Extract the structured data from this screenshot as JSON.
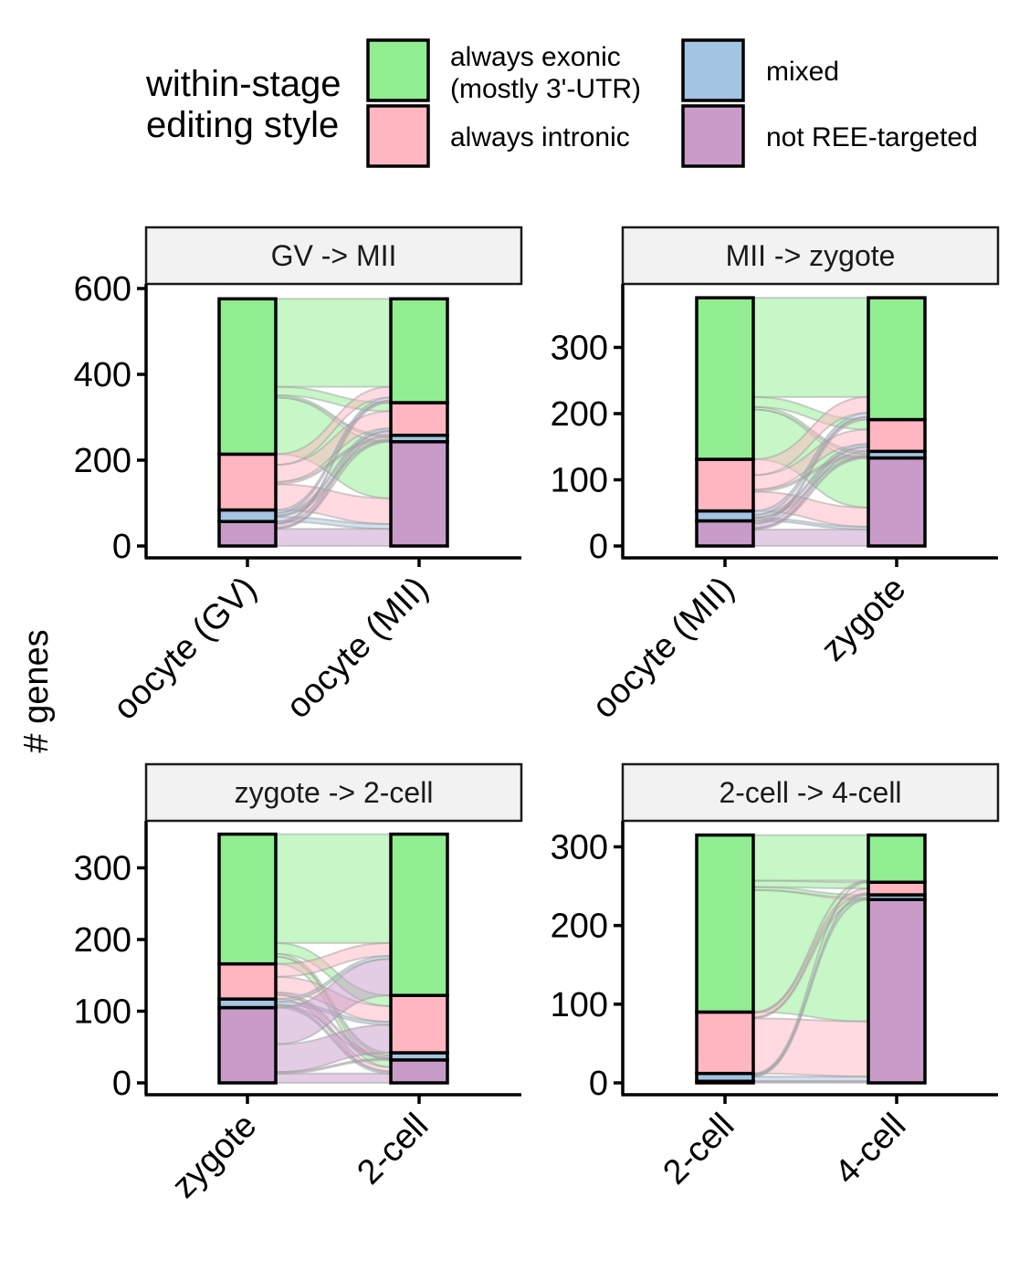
{
  "legend": {
    "title_line1": "within-stage",
    "title_line2": "editing style",
    "items": [
      {
        "key": "exonic",
        "label_line1": "always exonic",
        "label_line2": "(mostly 3'-UTR)",
        "color": "#90EE90"
      },
      {
        "key": "mixed",
        "label_line1": "mixed",
        "label_line2": "",
        "color": "#A3C4E2"
      },
      {
        "key": "intronic",
        "label_line1": "always intronic",
        "label_line2": "",
        "color": "#FFB6C1"
      },
      {
        "key": "notree",
        "label_line1": "not REE-targeted",
        "label_line2": "",
        "color": "#C89BC9"
      }
    ]
  },
  "ylabel": "# genes",
  "chart_data": [
    {
      "type": "alluvial",
      "title": "GV -> MII",
      "categories": [
        "oocyte (GV)",
        "oocyte (MII)"
      ],
      "ylim": [
        0,
        600
      ],
      "yticks": [
        0,
        200,
        400,
        600
      ],
      "stack_order": [
        "notree",
        "mixed",
        "intronic",
        "exonic"
      ],
      "stacks": [
        {
          "notree": 57,
          "mixed": 27,
          "intronic": 130,
          "exonic": 362
        },
        {
          "notree": 243,
          "mixed": 15,
          "intronic": 76,
          "exonic": 242
        }
      ],
      "flows": [
        {
          "from": "exonic",
          "to": "exonic",
          "value": 205
        },
        {
          "from": "exonic",
          "to": "intronic",
          "value": 20
        },
        {
          "from": "exonic",
          "to": "mixed",
          "value": 5
        },
        {
          "from": "exonic",
          "to": "notree",
          "value": 132
        },
        {
          "from": "intronic",
          "to": "exonic",
          "value": 25
        },
        {
          "from": "intronic",
          "to": "intronic",
          "value": 40
        },
        {
          "from": "intronic",
          "to": "mixed",
          "value": 5
        },
        {
          "from": "intronic",
          "to": "notree",
          "value": 60
        },
        {
          "from": "mixed",
          "to": "exonic",
          "value": 7
        },
        {
          "from": "mixed",
          "to": "intronic",
          "value": 6
        },
        {
          "from": "mixed",
          "to": "mixed",
          "value": 3
        },
        {
          "from": "mixed",
          "to": "notree",
          "value": 11
        },
        {
          "from": "notree",
          "to": "exonic",
          "value": 5
        },
        {
          "from": "notree",
          "to": "intronic",
          "value": 10
        },
        {
          "from": "notree",
          "to": "mixed",
          "value": 2
        },
        {
          "from": "notree",
          "to": "notree",
          "value": 40
        }
      ]
    },
    {
      "type": "alluvial",
      "title": "MII -> zygote",
      "categories": [
        "oocyte (MII)",
        "zygote"
      ],
      "ylim": [
        0,
        300
      ],
      "yticks": [
        0,
        100,
        200,
        300
      ],
      "stack_order": [
        "notree",
        "mixed",
        "intronic",
        "exonic"
      ],
      "stacks": [
        {
          "notree": 38,
          "mixed": 15,
          "intronic": 78,
          "exonic": 244
        },
        {
          "notree": 133,
          "mixed": 10,
          "intronic": 48,
          "exonic": 184
        }
      ],
      "flows": [
        {
          "from": "exonic",
          "to": "exonic",
          "value": 150
        },
        {
          "from": "exonic",
          "to": "intronic",
          "value": 15
        },
        {
          "from": "exonic",
          "to": "mixed",
          "value": 4
        },
        {
          "from": "exonic",
          "to": "notree",
          "value": 75
        },
        {
          "from": "intronic",
          "to": "exonic",
          "value": 24
        },
        {
          "from": "intronic",
          "to": "intronic",
          "value": 22
        },
        {
          "from": "intronic",
          "to": "mixed",
          "value": 3
        },
        {
          "from": "intronic",
          "to": "notree",
          "value": 29
        },
        {
          "from": "mixed",
          "to": "exonic",
          "value": 6
        },
        {
          "from": "mixed",
          "to": "intronic",
          "value": 4
        },
        {
          "from": "mixed",
          "to": "mixed",
          "value": 1
        },
        {
          "from": "mixed",
          "to": "notree",
          "value": 4
        },
        {
          "from": "notree",
          "to": "exonic",
          "value": 4
        },
        {
          "from": "notree",
          "to": "intronic",
          "value": 7
        },
        {
          "from": "notree",
          "to": "mixed",
          "value": 2
        },
        {
          "from": "notree",
          "to": "notree",
          "value": 25
        }
      ]
    },
    {
      "type": "alluvial",
      "title": "zygote -> 2-cell",
      "categories": [
        "zygote",
        "2-cell"
      ],
      "ylim": [
        0,
        300
      ],
      "yticks": [
        0,
        100,
        200,
        300
      ],
      "stack_order": [
        "notree",
        "mixed",
        "intronic",
        "exonic"
      ],
      "stacks": [
        {
          "notree": 105,
          "mixed": 12,
          "intronic": 49,
          "exonic": 181
        },
        {
          "notree": 32,
          "mixed": 10,
          "intronic": 80,
          "exonic": 225
        }
      ],
      "flows": [
        {
          "from": "exonic",
          "to": "exonic",
          "value": 152
        },
        {
          "from": "exonic",
          "to": "intronic",
          "value": 15
        },
        {
          "from": "exonic",
          "to": "mixed",
          "value": 4
        },
        {
          "from": "exonic",
          "to": "notree",
          "value": 10
        },
        {
          "from": "intronic",
          "to": "exonic",
          "value": 18
        },
        {
          "from": "intronic",
          "to": "intronic",
          "value": 22
        },
        {
          "from": "intronic",
          "to": "mixed",
          "value": 3
        },
        {
          "from": "intronic",
          "to": "notree",
          "value": 6
        },
        {
          "from": "mixed",
          "to": "exonic",
          "value": 4
        },
        {
          "from": "mixed",
          "to": "intronic",
          "value": 4
        },
        {
          "from": "mixed",
          "to": "mixed",
          "value": 1
        },
        {
          "from": "mixed",
          "to": "notree",
          "value": 3
        },
        {
          "from": "notree",
          "to": "exonic",
          "value": 51
        },
        {
          "from": "notree",
          "to": "intronic",
          "value": 39
        },
        {
          "from": "notree",
          "to": "mixed",
          "value": 2
        },
        {
          "from": "notree",
          "to": "notree",
          "value": 13
        }
      ]
    },
    {
      "type": "alluvial",
      "title": "2-cell -> 4-cell",
      "categories": [
        "2-cell",
        "4-cell"
      ],
      "ylim": [
        0,
        300
      ],
      "yticks": [
        0,
        100,
        200,
        300
      ],
      "stack_order": [
        "notree",
        "mixed",
        "intronic",
        "exonic"
      ],
      "stacks": [
        {
          "notree": 2,
          "mixed": 10,
          "intronic": 78,
          "exonic": 225
        },
        {
          "notree": 233,
          "mixed": 6,
          "intronic": 16,
          "exonic": 60
        }
      ],
      "flows": [
        {
          "from": "exonic",
          "to": "exonic",
          "value": 58
        },
        {
          "from": "exonic",
          "to": "intronic",
          "value": 8
        },
        {
          "from": "exonic",
          "to": "mixed",
          "value": 4
        },
        {
          "from": "exonic",
          "to": "notree",
          "value": 155
        },
        {
          "from": "intronic",
          "to": "exonic",
          "value": 1
        },
        {
          "from": "intronic",
          "to": "intronic",
          "value": 6
        },
        {
          "from": "intronic",
          "to": "mixed",
          "value": 1
        },
        {
          "from": "intronic",
          "to": "notree",
          "value": 70
        },
        {
          "from": "mixed",
          "to": "exonic",
          "value": 1
        },
        {
          "from": "mixed",
          "to": "intronic",
          "value": 2
        },
        {
          "from": "mixed",
          "to": "mixed",
          "value": 1
        },
        {
          "from": "mixed",
          "to": "notree",
          "value": 6
        },
        {
          "from": "notree",
          "to": "exonic",
          "value": 0
        },
        {
          "from": "notree",
          "to": "intronic",
          "value": 0
        },
        {
          "from": "notree",
          "to": "mixed",
          "value": 0
        },
        {
          "from": "notree",
          "to": "notree",
          "value": 2
        }
      ]
    }
  ]
}
